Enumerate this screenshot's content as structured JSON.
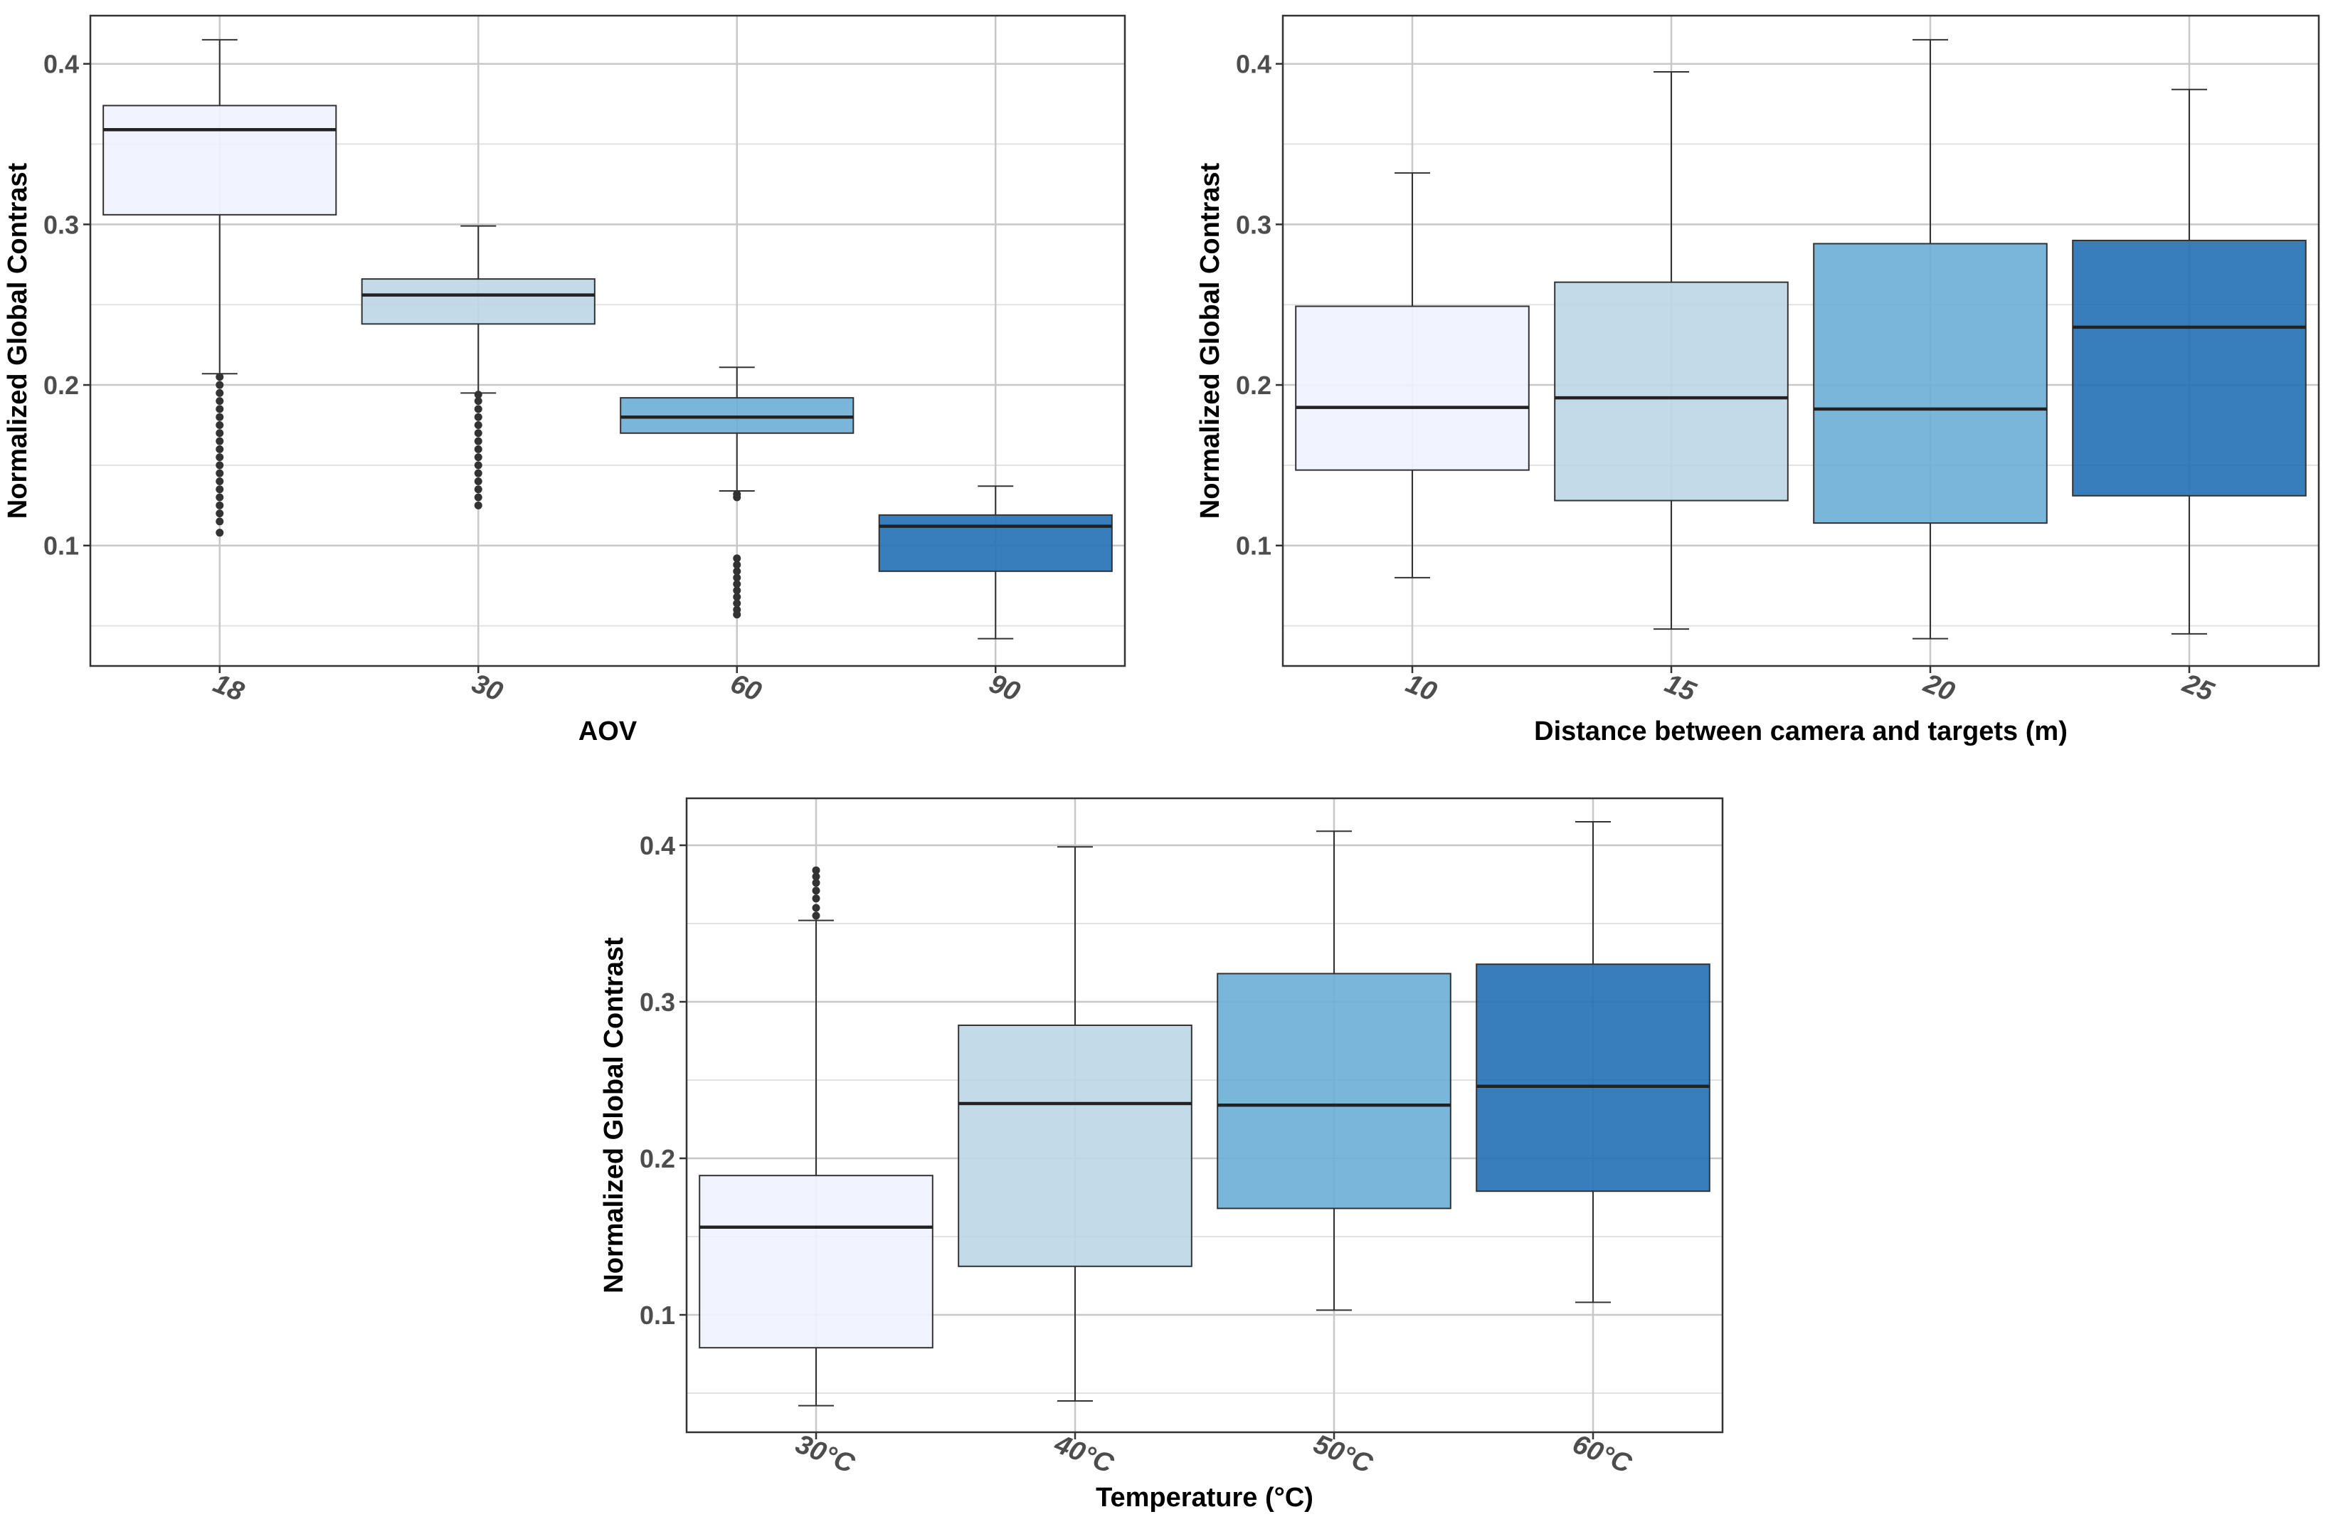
{
  "chart_data": [
    {
      "type": "box",
      "xlabel": "AOV",
      "ylabel": "Normalized Global Contrast",
      "ylim": [
        0.025,
        0.43
      ],
      "yticks": [
        0.1,
        0.2,
        0.3,
        0.4
      ],
      "grid": true,
      "colors": [
        "#eff3ff",
        "#bdd7e7",
        "#6baed6",
        "#2171b5"
      ],
      "categories": [
        "18",
        "30",
        "60",
        "90"
      ],
      "boxes": [
        {
          "whisker_low": 0.207,
          "q1": 0.306,
          "median": 0.359,
          "q3": 0.374,
          "whisker_high": 0.415,
          "outliers": [
            0.205,
            0.2,
            0.195,
            0.19,
            0.185,
            0.18,
            0.175,
            0.17,
            0.165,
            0.16,
            0.155,
            0.15,
            0.145,
            0.14,
            0.135,
            0.13,
            0.125,
            0.12,
            0.115,
            0.108
          ]
        },
        {
          "whisker_low": 0.195,
          "q1": 0.238,
          "median": 0.256,
          "q3": 0.266,
          "whisker_high": 0.299,
          "outliers": [
            0.194,
            0.19,
            0.185,
            0.18,
            0.175,
            0.17,
            0.165,
            0.16,
            0.155,
            0.15,
            0.145,
            0.14,
            0.135,
            0.13,
            0.125
          ]
        },
        {
          "whisker_low": 0.134,
          "q1": 0.17,
          "median": 0.18,
          "q3": 0.192,
          "whisker_high": 0.211,
          "outliers": [
            0.132,
            0.13,
            0.092,
            0.088,
            0.084,
            0.08,
            0.076,
            0.072,
            0.068,
            0.064,
            0.06,
            0.057
          ]
        },
        {
          "whisker_low": 0.042,
          "q1": 0.084,
          "median": 0.112,
          "q3": 0.119,
          "whisker_high": 0.137,
          "outliers": []
        }
      ]
    },
    {
      "type": "box",
      "xlabel": "Distance between camera and targets (m)",
      "ylabel": "Normalized Global Contrast",
      "ylim": [
        0.025,
        0.43
      ],
      "yticks": [
        0.1,
        0.2,
        0.3,
        0.4
      ],
      "grid": true,
      "colors": [
        "#eff3ff",
        "#bdd7e7",
        "#6baed6",
        "#2171b5"
      ],
      "categories": [
        "10",
        "15",
        "20",
        "25"
      ],
      "boxes": [
        {
          "whisker_low": 0.08,
          "q1": 0.147,
          "median": 0.186,
          "q3": 0.249,
          "whisker_high": 0.332,
          "outliers": []
        },
        {
          "whisker_low": 0.048,
          "q1": 0.128,
          "median": 0.192,
          "q3": 0.264,
          "whisker_high": 0.395,
          "outliers": []
        },
        {
          "whisker_low": 0.042,
          "q1": 0.114,
          "median": 0.185,
          "q3": 0.288,
          "whisker_high": 0.415,
          "outliers": []
        },
        {
          "whisker_low": 0.045,
          "q1": 0.131,
          "median": 0.236,
          "q3": 0.29,
          "whisker_high": 0.384,
          "outliers": []
        }
      ]
    },
    {
      "type": "box",
      "xlabel": "Temperature (°C)",
      "ylabel": "Normalized Global Contrast",
      "ylim": [
        0.025,
        0.43
      ],
      "yticks": [
        0.1,
        0.2,
        0.3,
        0.4
      ],
      "grid": true,
      "colors": [
        "#eff3ff",
        "#bdd7e7",
        "#6baed6",
        "#2171b5"
      ],
      "categories": [
        "30°C",
        "40°C",
        "50°C",
        "60°C"
      ],
      "boxes": [
        {
          "whisker_low": 0.042,
          "q1": 0.079,
          "median": 0.156,
          "q3": 0.189,
          "whisker_high": 0.352,
          "outliers": [
            0.384,
            0.38,
            0.376,
            0.371,
            0.366,
            0.36,
            0.355
          ]
        },
        {
          "whisker_low": 0.045,
          "q1": 0.131,
          "median": 0.235,
          "q3": 0.285,
          "whisker_high": 0.399,
          "outliers": []
        },
        {
          "whisker_low": 0.103,
          "q1": 0.168,
          "median": 0.234,
          "q3": 0.318,
          "whisker_high": 0.409,
          "outliers": []
        },
        {
          "whisker_low": 0.108,
          "q1": 0.179,
          "median": 0.246,
          "q3": 0.324,
          "whisker_high": 0.415,
          "outliers": []
        }
      ]
    }
  ]
}
